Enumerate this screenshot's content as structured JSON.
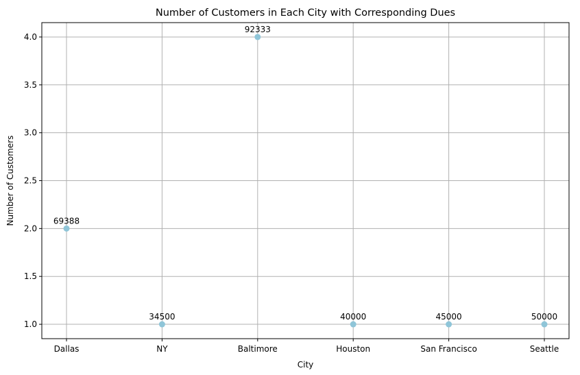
{
  "chart_data": {
    "type": "scatter",
    "title": "Number of Customers in Each City with Corresponding Dues",
    "xlabel": "City",
    "ylabel": "Number of Customers",
    "categories": [
      "Dallas",
      "NY",
      "Baltimore",
      "Houston",
      "San Francisco",
      "Seattle"
    ],
    "values": [
      2,
      1,
      4,
      1,
      1,
      1
    ],
    "point_labels": [
      "69388",
      "34500",
      "92333",
      "40000",
      "45000",
      "50000"
    ],
    "ylim": [
      0.85,
      4.15
    ],
    "yticks": [
      "1.0",
      "1.5",
      "2.0",
      "2.5",
      "3.0",
      "3.5",
      "4.0"
    ],
    "grid": true,
    "marker_color": "#8fc5d8"
  }
}
